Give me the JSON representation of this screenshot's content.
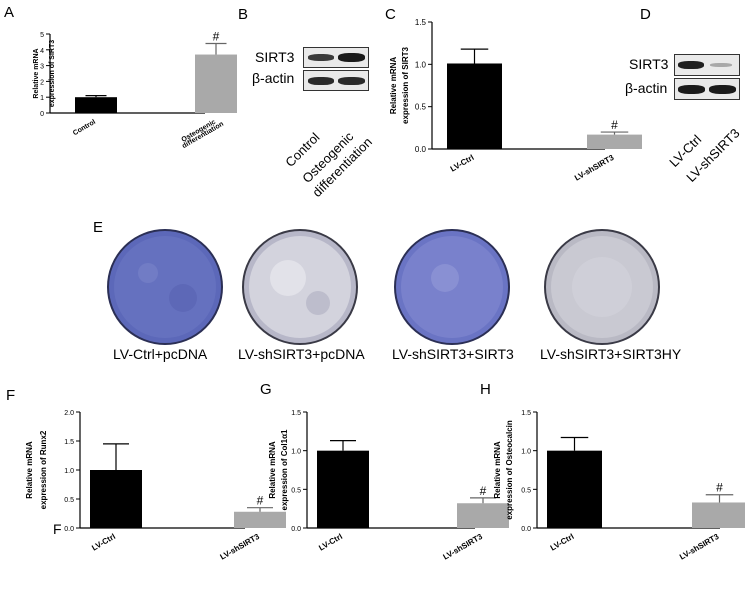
{
  "panel_labels": {
    "A": "A",
    "B": "B",
    "C": "C",
    "D": "D",
    "E": "E",
    "F": "F",
    "G": "G",
    "H": "H",
    "F_stray": "F"
  },
  "colors": {
    "black_bar": "#000000",
    "gray_bar": "#a9a9a9",
    "dish_blue": "#5b67b8",
    "dish_gray": "#a8a8b8"
  },
  "chart_data": [
    {
      "id": "A",
      "type": "bar",
      "categories": [
        "Control",
        "Osteogenic differentiation"
      ],
      "values": [
        1.0,
        3.7
      ],
      "errors": [
        0.1,
        0.7
      ],
      "colors": [
        "#000000",
        "#a9a9a9"
      ],
      "significance": [
        "",
        "#"
      ],
      "ylabel": "Relative mRNA expression of SIRT3",
      "ylim": [
        0,
        5
      ],
      "yticks": [
        0,
        1,
        2,
        3,
        4,
        5
      ]
    },
    {
      "id": "C",
      "type": "bar",
      "categories": [
        "LV-Ctrl",
        "LV-shSIRT3"
      ],
      "values": [
        1.01,
        0.17
      ],
      "errors": [
        0.17,
        0.03
      ],
      "colors": [
        "#000000",
        "#a9a9a9"
      ],
      "significance": [
        "",
        "#"
      ],
      "ylabel": "Relative mRNA expression of SIRT3",
      "ylim": [
        0,
        1.5
      ],
      "yticks": [
        "0.0",
        "0.5",
        "1.0",
        "1.5"
      ]
    },
    {
      "id": "F",
      "type": "bar",
      "categories": [
        "LV-Ctrl",
        "LV-shSIRT3"
      ],
      "values": [
        1.0,
        0.28
      ],
      "errors": [
        0.45,
        0.07
      ],
      "colors": [
        "#000000",
        "#a9a9a9"
      ],
      "significance": [
        "",
        "#"
      ],
      "ylabel": "Relative mRNA expression of Runx2",
      "ylim": [
        0,
        2.0
      ],
      "yticks": [
        "0.0",
        "0.5",
        "1.0",
        "1.5",
        "2.0"
      ]
    },
    {
      "id": "G",
      "type": "bar",
      "categories": [
        "LV-Ctrl",
        "LV-shSIRT3"
      ],
      "values": [
        1.0,
        0.32
      ],
      "errors": [
        0.13,
        0.07
      ],
      "colors": [
        "#000000",
        "#a9a9a9"
      ],
      "significance": [
        "",
        "#"
      ],
      "ylabel": "Relative mRNA expression of Col1α1",
      "ylim": [
        0,
        1.5
      ],
      "yticks": [
        "0.0",
        "0.5",
        "1.0",
        "1.5"
      ]
    },
    {
      "id": "H",
      "type": "bar",
      "categories": [
        "LV-Ctrl",
        "LV-shSIRT3"
      ],
      "values": [
        1.0,
        0.33
      ],
      "errors": [
        0.17,
        0.1
      ],
      "colors": [
        "#000000",
        "#a9a9a9"
      ],
      "significance": [
        "",
        "#"
      ],
      "ylabel": "Relative mRNA expression of Osteocalcin",
      "ylim": [
        0,
        1.5
      ],
      "yticks": [
        "0.0",
        "0.5",
        "1.0",
        "1.5"
      ]
    }
  ],
  "blot_B": {
    "labels": [
      "SIRT3",
      "β-actin"
    ],
    "lanes": [
      "Control",
      "Osteogenic differentiation"
    ],
    "lane_text": [
      "Control",
      "Osteogenic",
      "differentiation"
    ]
  },
  "blot_D": {
    "labels": [
      "SIRT3",
      "β-actin"
    ],
    "lanes": [
      "LV-Ctrl",
      "LV-shSIRT3"
    ]
  },
  "dishes": [
    {
      "caption": "LV-Ctrl+pcDNA",
      "tone": "blue"
    },
    {
      "caption": "LV-shSIRT3+pcDNA",
      "tone": "light"
    },
    {
      "caption": "LV-shSIRT3+SIRT3",
      "tone": "blue"
    },
    {
      "caption": "LV-shSIRT3+SIRT3HY",
      "tone": "light"
    }
  ]
}
